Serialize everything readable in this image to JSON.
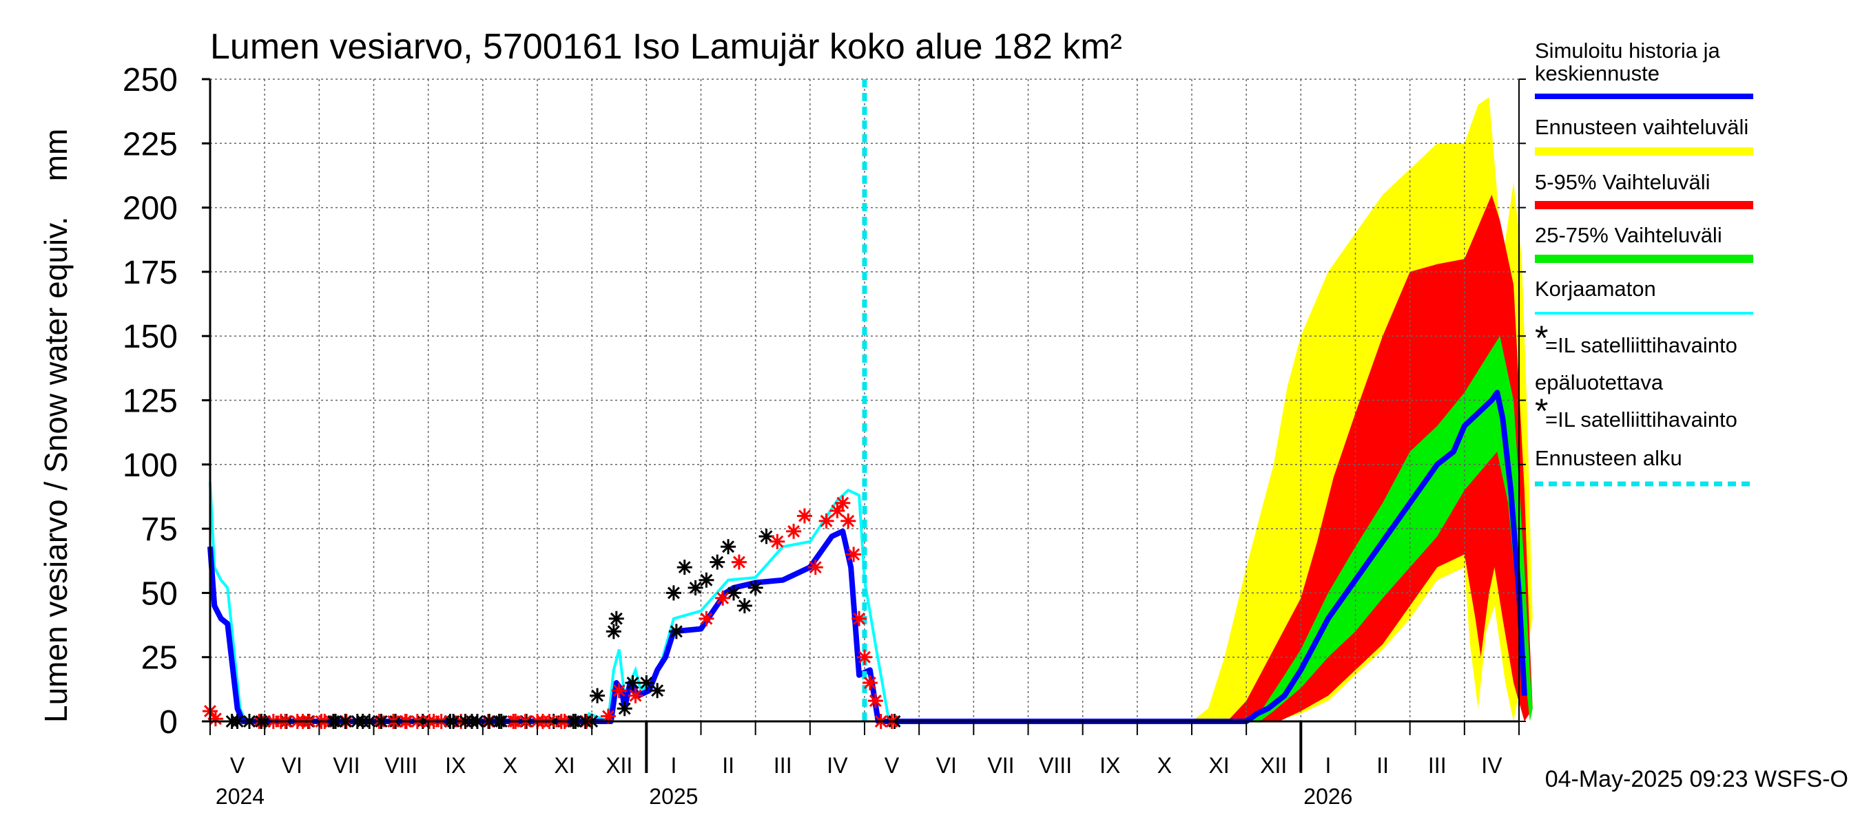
{
  "chart_data": {
    "type": "area",
    "title": "Lumen vesiarvo, 5700161 Iso Lamujär koko alue 182 km²",
    "ylabel": "Lumen vesiarvo / Snow water equiv.    mm",
    "ylim": [
      0,
      250
    ],
    "yticks": [
      "0",
      "25",
      "50",
      "75",
      "100",
      "125",
      "150",
      "175",
      "200",
      "225",
      "250"
    ],
    "grid": true,
    "legend_position": "right",
    "months": [
      "V",
      "VI",
      "VII",
      "VIII",
      "IX",
      "X",
      "XI",
      "XII",
      "I",
      "II",
      "III",
      "IV",
      "V",
      "VI",
      "VII",
      "VIII",
      "IX",
      "X",
      "XI",
      "XII",
      "I",
      "II",
      "III",
      "IV"
    ],
    "years": [
      "2024",
      "2025",
      "2026"
    ],
    "forecast_start_month": 12,
    "footer": "04-May-2025 09:23 WSFS-O",
    "legend": [
      {
        "label": "Simuloitu historia ja keskiennuste",
        "color": "#0000ff"
      },
      {
        "label": "Ennusteen vaihteluväli",
        "color": "#ffff00"
      },
      {
        "label": "5-95% Vaihteluväli",
        "color": "#ff0000"
      },
      {
        "label": "25-75% Vaihteluväli",
        "color": "#00ee00"
      },
      {
        "label": "Korjaamaton",
        "color": "#00ffff"
      },
      {
        "label": "=IL satelliittihavainto",
        "color": "#ff0000",
        "marker": "*"
      },
      {
        "label": "epäluotettava",
        "color": "#000000"
      },
      {
        "label": "=IL satelliittihavainto",
        "color": "#000000",
        "marker": "*"
      },
      {
        "label": "Ennusteen alku",
        "color": "#00e5ee"
      }
    ],
    "series": {
      "simulated_mean": [
        [
          0,
          68
        ],
        [
          0.08,
          45
        ],
        [
          0.2,
          40
        ],
        [
          0.32,
          38
        ],
        [
          0.5,
          5
        ],
        [
          0.6,
          0
        ],
        [
          7.35,
          0
        ],
        [
          7.45,
          15
        ],
        [
          7.55,
          12
        ],
        [
          7.6,
          5
        ],
        [
          7.7,
          15
        ],
        [
          7.85,
          10
        ],
        [
          8.05,
          12
        ],
        [
          8.2,
          20
        ],
        [
          8.35,
          25
        ],
        [
          8.5,
          35
        ],
        [
          9,
          36
        ],
        [
          9.45,
          50
        ],
        [
          9.6,
          52
        ],
        [
          10,
          54
        ],
        [
          10.5,
          55
        ],
        [
          11,
          60
        ],
        [
          11.4,
          72
        ],
        [
          11.6,
          74
        ],
        [
          11.75,
          60
        ],
        [
          11.9,
          18
        ],
        [
          12.1,
          20
        ],
        [
          12.25,
          0
        ],
        [
          12.5,
          0
        ],
        [
          19,
          0
        ],
        [
          19.2,
          3
        ],
        [
          19.4,
          5
        ],
        [
          19.7,
          10
        ],
        [
          20,
          20
        ],
        [
          20.5,
          40
        ],
        [
          21,
          55
        ],
        [
          21.5,
          70
        ],
        [
          22,
          85
        ],
        [
          22.5,
          100
        ],
        [
          22.8,
          105
        ],
        [
          23,
          115
        ],
        [
          23.5,
          125
        ],
        [
          23.6,
          128
        ],
        [
          23.7,
          118
        ],
        [
          23.85,
          90
        ],
        [
          24,
          50
        ],
        [
          24.1,
          10
        ]
      ],
      "uncorrected": [
        [
          0,
          93
        ],
        [
          0.08,
          60
        ],
        [
          0.2,
          55
        ],
        [
          0.32,
          52
        ],
        [
          0.55,
          5
        ],
        [
          0.65,
          0
        ],
        [
          6.9,
          0
        ],
        [
          6.95,
          3
        ],
        [
          7.3,
          0
        ],
        [
          7.4,
          20
        ],
        [
          7.5,
          28
        ],
        [
          7.6,
          10
        ],
        [
          7.8,
          20
        ],
        [
          7.9,
          12
        ],
        [
          8.1,
          15
        ],
        [
          8.3,
          25
        ],
        [
          8.5,
          40
        ],
        [
          9,
          43
        ],
        [
          9.5,
          55
        ],
        [
          10,
          56
        ],
        [
          10.5,
          68
        ],
        [
          11,
          70
        ],
        [
          11.5,
          86
        ],
        [
          11.7,
          90
        ],
        [
          11.9,
          88
        ],
        [
          12,
          55
        ],
        [
          12.2,
          30
        ],
        [
          12.45,
          0
        ],
        [
          12.6,
          0
        ]
      ],
      "band_p25": [
        [
          19.25,
          0
        ],
        [
          19.5,
          4
        ],
        [
          20,
          13
        ],
        [
          20.5,
          25
        ],
        [
          21,
          35
        ],
        [
          21.5,
          48
        ],
        [
          22,
          60
        ],
        [
          22.5,
          72
        ],
        [
          23,
          90
        ],
        [
          23.4,
          100
        ],
        [
          23.6,
          105
        ],
        [
          23.8,
          85
        ],
        [
          24,
          40
        ],
        [
          24.15,
          10
        ],
        [
          24.2,
          0
        ]
      ],
      "band_p75": [
        [
          19.0,
          0
        ],
        [
          19.3,
          5
        ],
        [
          19.7,
          18
        ],
        [
          20,
          28
        ],
        [
          20.5,
          50
        ],
        [
          21,
          68
        ],
        [
          21.5,
          85
        ],
        [
          22,
          105
        ],
        [
          22.5,
          115
        ],
        [
          23,
          128
        ],
        [
          23.5,
          145
        ],
        [
          23.65,
          150
        ],
        [
          23.9,
          125
        ],
        [
          24.1,
          60
        ],
        [
          24.2,
          20
        ],
        [
          24.25,
          5
        ]
      ],
      "band_p5": [
        [
          19.6,
          0
        ],
        [
          20,
          4
        ],
        [
          20.5,
          10
        ],
        [
          21,
          20
        ],
        [
          21.5,
          30
        ],
        [
          22,
          45
        ],
        [
          22.5,
          60
        ],
        [
          23,
          65
        ],
        [
          23.2,
          40
        ],
        [
          23.3,
          25
        ],
        [
          23.45,
          50
        ],
        [
          23.55,
          60
        ],
        [
          23.7,
          40
        ],
        [
          23.9,
          15
        ],
        [
          24.1,
          0
        ]
      ],
      "band_p95": [
        [
          18.65,
          0
        ],
        [
          19,
          8
        ],
        [
          19.5,
          28
        ],
        [
          20,
          48
        ],
        [
          20.3,
          70
        ],
        [
          20.6,
          95
        ],
        [
          21,
          120
        ],
        [
          21.5,
          150
        ],
        [
          22,
          175
        ],
        [
          22.5,
          178
        ],
        [
          23,
          180
        ],
        [
          23.5,
          205
        ],
        [
          23.65,
          195
        ],
        [
          23.9,
          170
        ],
        [
          24.1,
          90
        ],
        [
          24.2,
          30
        ],
        [
          24.25,
          5
        ]
      ],
      "band_min": [
        [
          19.5,
          0
        ],
        [
          20,
          3
        ],
        [
          20.5,
          8
        ],
        [
          21,
          18
        ],
        [
          21.5,
          28
        ],
        [
          22,
          40
        ],
        [
          22.5,
          55
        ],
        [
          23,
          60
        ],
        [
          23.1,
          30
        ],
        [
          23.25,
          5
        ],
        [
          23.4,
          35
        ],
        [
          23.55,
          45
        ],
        [
          23.75,
          15
        ],
        [
          23.9,
          0
        ]
      ],
      "band_max": [
        [
          18.0,
          0
        ],
        [
          18.3,
          5
        ],
        [
          18.6,
          25
        ],
        [
          19,
          60
        ],
        [
          19.5,
          100
        ],
        [
          19.75,
          130
        ],
        [
          20,
          150
        ],
        [
          20.5,
          175
        ],
        [
          21,
          190
        ],
        [
          21.5,
          205
        ],
        [
          22,
          215
        ],
        [
          22.5,
          225
        ],
        [
          23,
          225
        ],
        [
          23.25,
          240
        ],
        [
          23.45,
          243
        ],
        [
          23.7,
          180
        ],
        [
          23.9,
          210
        ],
        [
          24.05,
          180
        ],
        [
          24.15,
          120
        ],
        [
          24.25,
          40
        ]
      ]
    },
    "obs_red": [
      [
        0,
        4
      ],
      [
        0.1,
        1
      ],
      [
        0.9,
        0
      ],
      [
        1.3,
        0
      ],
      [
        1.7,
        0
      ],
      [
        2.1,
        0
      ],
      [
        2.5,
        0
      ],
      [
        3.1,
        0
      ],
      [
        3.6,
        0
      ],
      [
        4.1,
        0
      ],
      [
        4.6,
        0
      ],
      [
        5.1,
        0
      ],
      [
        5.6,
        0
      ],
      [
        6.1,
        0
      ],
      [
        6.5,
        0
      ],
      [
        6.9,
        0
      ],
      [
        7.3,
        2
      ],
      [
        7.5,
        12
      ],
      [
        7.8,
        10
      ],
      [
        9.1,
        40
      ],
      [
        9.4,
        48
      ],
      [
        9.7,
        62
      ],
      [
        10.4,
        70
      ],
      [
        10.7,
        74
      ],
      [
        10.9,
        80
      ],
      [
        11.1,
        60
      ],
      [
        11.3,
        78
      ],
      [
        11.5,
        82
      ],
      [
        11.6,
        85
      ],
      [
        11.7,
        78
      ],
      [
        11.8,
        65
      ],
      [
        11.9,
        40
      ],
      [
        12.0,
        25
      ],
      [
        12.1,
        15
      ],
      [
        12.2,
        8
      ],
      [
        12.3,
        0
      ],
      [
        12.5,
        0
      ]
    ],
    "obs_black": [
      [
        0.4,
        0
      ],
      [
        1,
        0
      ],
      [
        1.4,
        0
      ],
      [
        1.8,
        0
      ],
      [
        2.3,
        0
      ],
      [
        2.8,
        0
      ],
      [
        3.4,
        0
      ],
      [
        3.9,
        0
      ],
      [
        4.4,
        0
      ],
      [
        4.8,
        0
      ],
      [
        5.3,
        0
      ],
      [
        5.8,
        0
      ],
      [
        6.3,
        0
      ],
      [
        6.7,
        0
      ],
      [
        7.0,
        0
      ],
      [
        7.1,
        10
      ],
      [
        7.4,
        35
      ],
      [
        7.45,
        40
      ],
      [
        7.6,
        5
      ],
      [
        7.75,
        15
      ],
      [
        8.0,
        15
      ],
      [
        8.2,
        12
      ],
      [
        8.5,
        50
      ],
      [
        8.55,
        35
      ],
      [
        8.7,
        60
      ],
      [
        8.9,
        52
      ],
      [
        9.1,
        55
      ],
      [
        9.3,
        62
      ],
      [
        9.5,
        68
      ],
      [
        9.6,
        50
      ],
      [
        9.8,
        45
      ],
      [
        10.0,
        52
      ],
      [
        10.2,
        72
      ],
      [
        12.55,
        0
      ]
    ]
  }
}
